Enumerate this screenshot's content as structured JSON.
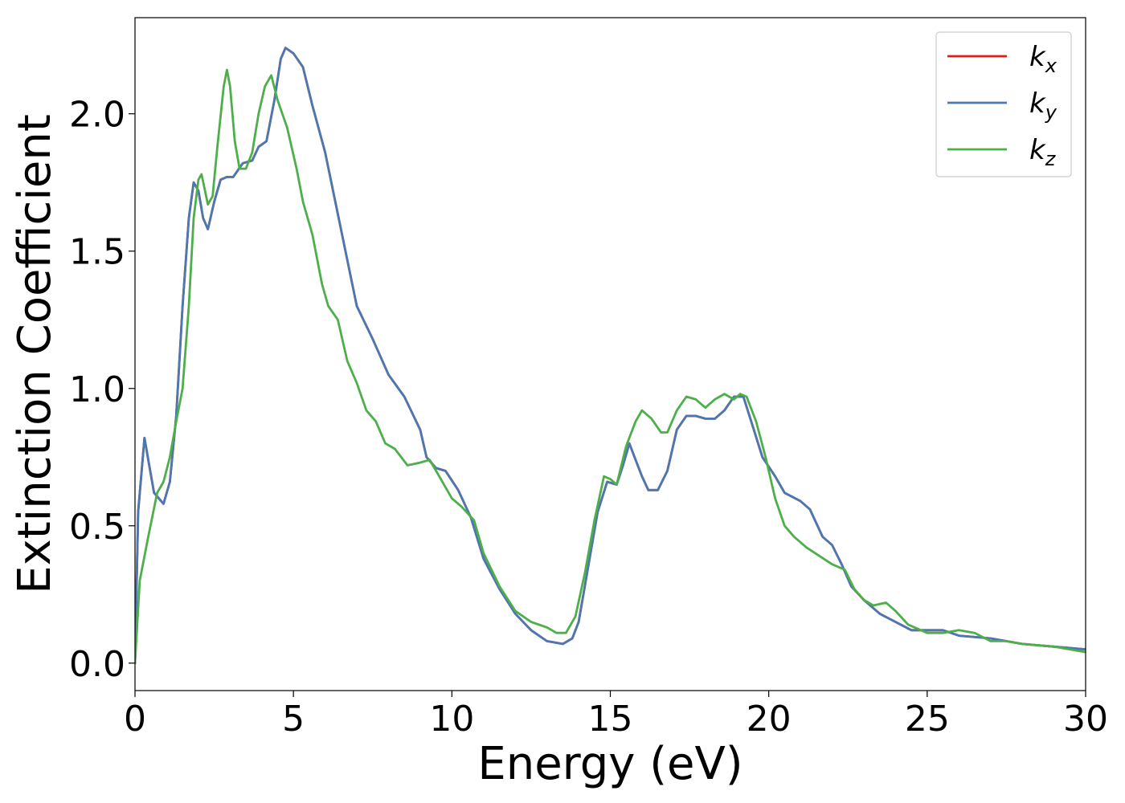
{
  "chart_data": {
    "type": "line",
    "xlabel": "Energy (eV)",
    "ylabel": "Extinction Coefficient",
    "xlim": [
      0,
      30
    ],
    "ylim": [
      -0.1,
      2.35
    ],
    "x_ticks": [
      0,
      5,
      10,
      15,
      20,
      25,
      30
    ],
    "x_tick_labels": [
      "0",
      "5",
      "10",
      "15",
      "20",
      "25",
      "30"
    ],
    "y_ticks": [
      0.0,
      0.5,
      1.0,
      1.5,
      2.0
    ],
    "y_tick_labels": [
      "0.0",
      "0.5",
      "1.0",
      "1.5",
      "2.0"
    ],
    "grid": false,
    "legend_position": "upper right",
    "series": [
      {
        "name": "k_x",
        "legend_base": "k",
        "legend_sub": "x",
        "color": "#e41a1c",
        "points": [
          [
            0,
            0
          ],
          [
            0.1,
            0.55
          ],
          [
            0.3,
            0.82
          ],
          [
            0.45,
            0.72
          ],
          [
            0.6,
            0.62
          ],
          [
            0.9,
            0.58
          ],
          [
            1.1,
            0.66
          ],
          [
            1.3,
            0.9
          ],
          [
            1.5,
            1.3
          ],
          [
            1.7,
            1.62
          ],
          [
            1.85,
            1.75
          ],
          [
            2.0,
            1.72
          ],
          [
            2.15,
            1.62
          ],
          [
            2.3,
            1.58
          ],
          [
            2.5,
            1.68
          ],
          [
            2.7,
            1.76
          ],
          [
            2.9,
            1.77
          ],
          [
            3.1,
            1.77
          ],
          [
            3.4,
            1.82
          ],
          [
            3.7,
            1.83
          ],
          [
            3.9,
            1.88
          ],
          [
            4.15,
            1.9
          ],
          [
            4.4,
            2.05
          ],
          [
            4.6,
            2.2
          ],
          [
            4.75,
            2.24
          ],
          [
            5.0,
            2.22
          ],
          [
            5.3,
            2.17
          ],
          [
            5.6,
            2.03
          ],
          [
            6.0,
            1.86
          ],
          [
            6.5,
            1.58
          ],
          [
            7.0,
            1.3
          ],
          [
            7.5,
            1.18
          ],
          [
            8.0,
            1.05
          ],
          [
            8.5,
            0.97
          ],
          [
            9.0,
            0.85
          ],
          [
            9.2,
            0.75
          ],
          [
            9.5,
            0.71
          ],
          [
            9.8,
            0.7
          ],
          [
            10.2,
            0.63
          ],
          [
            10.6,
            0.53
          ],
          [
            11.0,
            0.38
          ],
          [
            11.5,
            0.27
          ],
          [
            12.0,
            0.18
          ],
          [
            12.5,
            0.12
          ],
          [
            13.0,
            0.08
          ],
          [
            13.5,
            0.07
          ],
          [
            13.8,
            0.09
          ],
          [
            14.0,
            0.15
          ],
          [
            14.3,
            0.35
          ],
          [
            14.6,
            0.55
          ],
          [
            14.9,
            0.66
          ],
          [
            15.2,
            0.65
          ],
          [
            15.4,
            0.72
          ],
          [
            15.6,
            0.8
          ],
          [
            15.8,
            0.74
          ],
          [
            16.0,
            0.68
          ],
          [
            16.2,
            0.63
          ],
          [
            16.5,
            0.63
          ],
          [
            16.8,
            0.7
          ],
          [
            17.1,
            0.85
          ],
          [
            17.4,
            0.9
          ],
          [
            17.7,
            0.9
          ],
          [
            18.0,
            0.89
          ],
          [
            18.3,
            0.89
          ],
          [
            18.6,
            0.92
          ],
          [
            18.9,
            0.97
          ],
          [
            19.2,
            0.97
          ],
          [
            19.5,
            0.86
          ],
          [
            19.8,
            0.75
          ],
          [
            20.2,
            0.68
          ],
          [
            20.5,
            0.62
          ],
          [
            21.0,
            0.59
          ],
          [
            21.3,
            0.56
          ],
          [
            21.7,
            0.46
          ],
          [
            22.0,
            0.43
          ],
          [
            22.3,
            0.36
          ],
          [
            22.6,
            0.28
          ],
          [
            23.0,
            0.23
          ],
          [
            23.5,
            0.18
          ],
          [
            24.0,
            0.15
          ],
          [
            24.5,
            0.12
          ],
          [
            25.0,
            0.12
          ],
          [
            25.5,
            0.12
          ],
          [
            26.0,
            0.1
          ],
          [
            27.0,
            0.09
          ],
          [
            28.0,
            0.07
          ],
          [
            29.0,
            0.06
          ],
          [
            30,
            0.05
          ]
        ]
      },
      {
        "name": "k_y",
        "legend_base": "k",
        "legend_sub": "y",
        "color": "#4a78b0",
        "points": [
          [
            0,
            0
          ],
          [
            0.1,
            0.55
          ],
          [
            0.3,
            0.82
          ],
          [
            0.45,
            0.72
          ],
          [
            0.6,
            0.62
          ],
          [
            0.9,
            0.58
          ],
          [
            1.1,
            0.66
          ],
          [
            1.3,
            0.9
          ],
          [
            1.5,
            1.3
          ],
          [
            1.7,
            1.62
          ],
          [
            1.85,
            1.75
          ],
          [
            2.0,
            1.72
          ],
          [
            2.15,
            1.62
          ],
          [
            2.3,
            1.58
          ],
          [
            2.5,
            1.68
          ],
          [
            2.7,
            1.76
          ],
          [
            2.9,
            1.77
          ],
          [
            3.1,
            1.77
          ],
          [
            3.4,
            1.82
          ],
          [
            3.7,
            1.83
          ],
          [
            3.9,
            1.88
          ],
          [
            4.15,
            1.9
          ],
          [
            4.4,
            2.05
          ],
          [
            4.6,
            2.2
          ],
          [
            4.75,
            2.24
          ],
          [
            5.0,
            2.22
          ],
          [
            5.3,
            2.17
          ],
          [
            5.6,
            2.03
          ],
          [
            6.0,
            1.86
          ],
          [
            6.5,
            1.58
          ],
          [
            7.0,
            1.3
          ],
          [
            7.5,
            1.18
          ],
          [
            8.0,
            1.05
          ],
          [
            8.5,
            0.97
          ],
          [
            9.0,
            0.85
          ],
          [
            9.2,
            0.75
          ],
          [
            9.5,
            0.71
          ],
          [
            9.8,
            0.7
          ],
          [
            10.2,
            0.63
          ],
          [
            10.6,
            0.53
          ],
          [
            11.0,
            0.38
          ],
          [
            11.5,
            0.27
          ],
          [
            12.0,
            0.18
          ],
          [
            12.5,
            0.12
          ],
          [
            13.0,
            0.08
          ],
          [
            13.5,
            0.07
          ],
          [
            13.8,
            0.09
          ],
          [
            14.0,
            0.15
          ],
          [
            14.3,
            0.35
          ],
          [
            14.6,
            0.55
          ],
          [
            14.9,
            0.66
          ],
          [
            15.2,
            0.65
          ],
          [
            15.4,
            0.72
          ],
          [
            15.6,
            0.8
          ],
          [
            15.8,
            0.74
          ],
          [
            16.0,
            0.68
          ],
          [
            16.2,
            0.63
          ],
          [
            16.5,
            0.63
          ],
          [
            16.8,
            0.7
          ],
          [
            17.1,
            0.85
          ],
          [
            17.4,
            0.9
          ],
          [
            17.7,
            0.9
          ],
          [
            18.0,
            0.89
          ],
          [
            18.3,
            0.89
          ],
          [
            18.6,
            0.92
          ],
          [
            18.9,
            0.97
          ],
          [
            19.2,
            0.97
          ],
          [
            19.5,
            0.86
          ],
          [
            19.8,
            0.75
          ],
          [
            20.2,
            0.68
          ],
          [
            20.5,
            0.62
          ],
          [
            21.0,
            0.59
          ],
          [
            21.3,
            0.56
          ],
          [
            21.7,
            0.46
          ],
          [
            22.0,
            0.43
          ],
          [
            22.3,
            0.36
          ],
          [
            22.6,
            0.28
          ],
          [
            23.0,
            0.23
          ],
          [
            23.5,
            0.18
          ],
          [
            24.0,
            0.15
          ],
          [
            24.5,
            0.12
          ],
          [
            25.0,
            0.12
          ],
          [
            25.5,
            0.12
          ],
          [
            26.0,
            0.1
          ],
          [
            27.0,
            0.09
          ],
          [
            28.0,
            0.07
          ],
          [
            29.0,
            0.06
          ],
          [
            30,
            0.05
          ]
        ]
      },
      {
        "name": "k_z",
        "legend_base": "k",
        "legend_sub": "z",
        "color": "#4daf4a",
        "points": [
          [
            0,
            0
          ],
          [
            0.15,
            0.3
          ],
          [
            0.4,
            0.45
          ],
          [
            0.7,
            0.62
          ],
          [
            0.9,
            0.66
          ],
          [
            1.1,
            0.75
          ],
          [
            1.3,
            0.88
          ],
          [
            1.5,
            1.0
          ],
          [
            1.7,
            1.3
          ],
          [
            1.85,
            1.62
          ],
          [
            2.0,
            1.76
          ],
          [
            2.1,
            1.78
          ],
          [
            2.3,
            1.67
          ],
          [
            2.45,
            1.7
          ],
          [
            2.6,
            1.88
          ],
          [
            2.8,
            2.1
          ],
          [
            2.9,
            2.16
          ],
          [
            3.0,
            2.1
          ],
          [
            3.15,
            1.9
          ],
          [
            3.3,
            1.8
          ],
          [
            3.5,
            1.8
          ],
          [
            3.7,
            1.86
          ],
          [
            3.9,
            2.0
          ],
          [
            4.1,
            2.1
          ],
          [
            4.3,
            2.14
          ],
          [
            4.5,
            2.05
          ],
          [
            4.8,
            1.95
          ],
          [
            5.1,
            1.8
          ],
          [
            5.3,
            1.68
          ],
          [
            5.6,
            1.56
          ],
          [
            5.9,
            1.38
          ],
          [
            6.1,
            1.3
          ],
          [
            6.4,
            1.25
          ],
          [
            6.7,
            1.1
          ],
          [
            7.0,
            1.02
          ],
          [
            7.3,
            0.92
          ],
          [
            7.6,
            0.88
          ],
          [
            7.9,
            0.8
          ],
          [
            8.2,
            0.78
          ],
          [
            8.6,
            0.72
          ],
          [
            9.0,
            0.73
          ],
          [
            9.3,
            0.74
          ],
          [
            9.6,
            0.68
          ],
          [
            10.0,
            0.6
          ],
          [
            10.3,
            0.57
          ],
          [
            10.7,
            0.52
          ],
          [
            11.0,
            0.4
          ],
          [
            11.5,
            0.28
          ],
          [
            12.0,
            0.19
          ],
          [
            12.5,
            0.15
          ],
          [
            13.0,
            0.13
          ],
          [
            13.3,
            0.11
          ],
          [
            13.6,
            0.11
          ],
          [
            13.9,
            0.17
          ],
          [
            14.2,
            0.33
          ],
          [
            14.5,
            0.52
          ],
          [
            14.8,
            0.68
          ],
          [
            15.0,
            0.67
          ],
          [
            15.2,
            0.65
          ],
          [
            15.5,
            0.79
          ],
          [
            15.8,
            0.88
          ],
          [
            16.0,
            0.92
          ],
          [
            16.3,
            0.89
          ],
          [
            16.6,
            0.84
          ],
          [
            16.8,
            0.84
          ],
          [
            17.1,
            0.92
          ],
          [
            17.4,
            0.97
          ],
          [
            17.7,
            0.96
          ],
          [
            18.0,
            0.93
          ],
          [
            18.3,
            0.96
          ],
          [
            18.6,
            0.98
          ],
          [
            18.9,
            0.96
          ],
          [
            19.1,
            0.98
          ],
          [
            19.3,
            0.97
          ],
          [
            19.6,
            0.88
          ],
          [
            19.9,
            0.75
          ],
          [
            20.2,
            0.6
          ],
          [
            20.5,
            0.5
          ],
          [
            20.8,
            0.46
          ],
          [
            21.2,
            0.42
          ],
          [
            21.6,
            0.39
          ],
          [
            22.0,
            0.36
          ],
          [
            22.4,
            0.34
          ],
          [
            22.7,
            0.27
          ],
          [
            23.0,
            0.23
          ],
          [
            23.3,
            0.21
          ],
          [
            23.7,
            0.22
          ],
          [
            24.0,
            0.19
          ],
          [
            24.4,
            0.14
          ],
          [
            25.0,
            0.11
          ],
          [
            25.5,
            0.11
          ],
          [
            26.0,
            0.12
          ],
          [
            26.5,
            0.11
          ],
          [
            27.0,
            0.08
          ],
          [
            27.5,
            0.08
          ],
          [
            28.0,
            0.07
          ],
          [
            29.0,
            0.06
          ],
          [
            30,
            0.04
          ]
        ]
      }
    ]
  }
}
